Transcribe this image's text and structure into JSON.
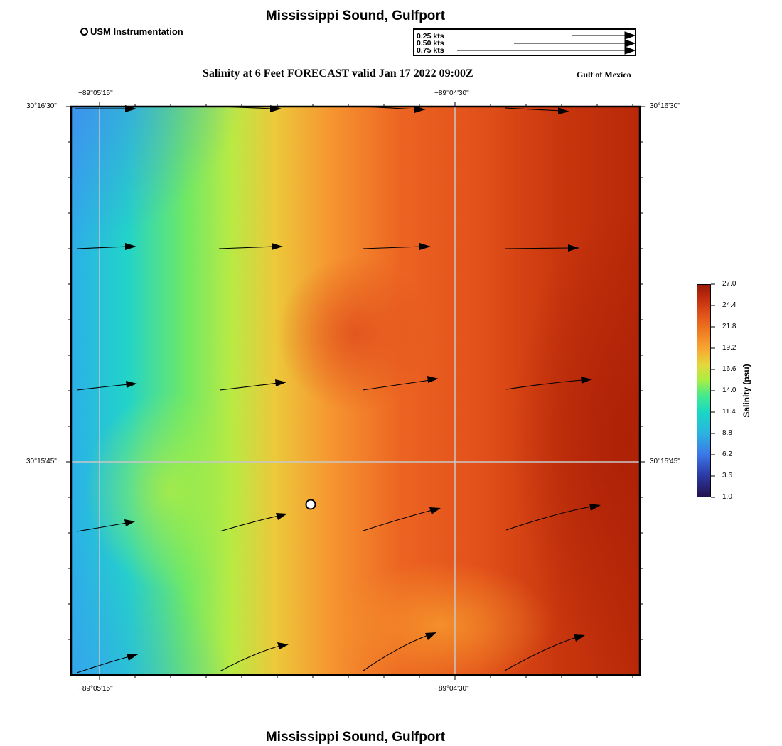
{
  "header": {
    "title": "Mississippi Sound, Gulfport",
    "subtitle": "Salinity at 6 Feet FORECAST valid Jan 17 2022 09:00Z",
    "region": "Gulf of Mexico"
  },
  "footer": {
    "title": "Mississippi Sound, Gulfport"
  },
  "station_legend": {
    "label": "USM Instrumentation"
  },
  "current_speed_legend": {
    "entries": [
      "0.25 kts",
      "0.50 kts",
      "0.75 kts"
    ]
  },
  "map": {
    "longitude_labels": [
      "−89°05'15\"",
      "−89°04'30\""
    ],
    "latitude_labels": [
      "30°16'30\"",
      "30°15'45\""
    ]
  },
  "colorbar": {
    "title": "Salinity (psu)",
    "ticks": [
      "27.0",
      "24.4",
      "21.8",
      "19.2",
      "16.6",
      "14.0",
      "11.4",
      "8.8",
      "6.2",
      "3.6",
      "1.0"
    ]
  },
  "colors": {
    "station_marker": "#ffffff",
    "arrow": "#000000",
    "grid": "#c8c8c8"
  }
}
